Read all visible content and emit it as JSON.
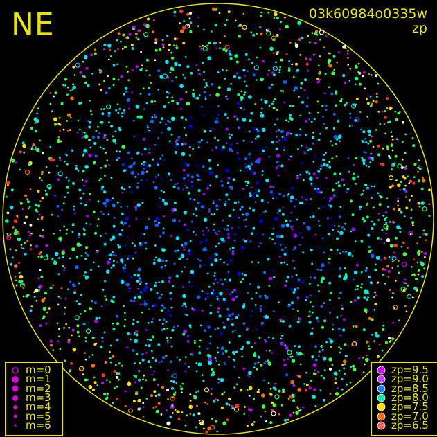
{
  "chart_data": {
    "type": "scatter",
    "title": "NE",
    "frame_id": "03k60984o0335w",
    "color_quantity": "zp",
    "projection": "all-sky circle",
    "size_legend": {
      "title": "",
      "entries": [
        "m=0",
        "m=1",
        "m=2",
        "m=3",
        "m=4",
        "m=5",
        "m=6"
      ],
      "symbol_color": "#e000e0"
    },
    "color_legend": {
      "entries": [
        {
          "label": "zp=9.5",
          "color": "#cc00ff"
        },
        {
          "label": "zp=9.0",
          "color": "#c040f0"
        },
        {
          "label": "zp=8.5",
          "color": "#2080ff"
        },
        {
          "label": "zp=8.0",
          "color": "#00f0a0"
        },
        {
          "label": "zp=7.5",
          "color": "#ffe000"
        },
        {
          "label": "zp=7.0",
          "color": "#ff6a10"
        },
        {
          "label": "zp=6.5",
          "color": "#ff6060"
        }
      ]
    },
    "horizon_color": "#e6e600"
  }
}
